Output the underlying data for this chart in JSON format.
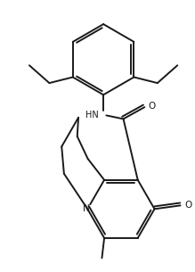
{
  "background_color": "#ffffff",
  "line_color": "#1a1a1a",
  "line_width": 1.4,
  "figsize": [
    2.19,
    3.05
  ],
  "dpi": 100,
  "xlim": [
    -0.75,
    0.75
  ],
  "ylim": [
    -0.85,
    1.45
  ]
}
